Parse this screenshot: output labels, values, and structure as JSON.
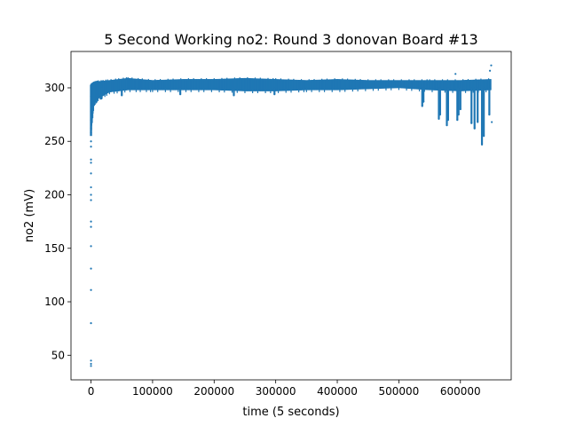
{
  "chart_data": {
    "type": "scatter",
    "title": "5 Second Working no2: Round 3 donovan Board #13",
    "xlabel": "time (5 seconds)",
    "ylabel": "no2 (mV)",
    "xlim": [
      -32500,
      682500
    ],
    "ylim": [
      27,
      334
    ],
    "x_ticks": [
      0,
      100000,
      200000,
      300000,
      400000,
      500000,
      600000
    ],
    "y_ticks": [
      50,
      100,
      150,
      200,
      250,
      300
    ],
    "grid": false,
    "legend": "none",
    "point_color": "#1f77b4",
    "startup_points": [
      {
        "x": 0,
        "y": 40
      },
      {
        "x": 0,
        "y": 42
      },
      {
        "x": 0,
        "y": 45
      },
      {
        "x": 0,
        "y": 80
      },
      {
        "x": 0,
        "y": 111
      },
      {
        "x": 0,
        "y": 131
      },
      {
        "x": 0,
        "y": 152
      },
      {
        "x": 0,
        "y": 170
      },
      {
        "x": 0,
        "y": 175
      },
      {
        "x": 0,
        "y": 195
      },
      {
        "x": 0,
        "y": 200
      },
      {
        "x": 0,
        "y": 207
      },
      {
        "x": 0,
        "y": 220
      },
      {
        "x": 0,
        "y": 230
      },
      {
        "x": 0,
        "y": 233
      },
      {
        "x": 0,
        "y": 245
      },
      {
        "x": 0,
        "y": 250
      },
      {
        "x": 0,
        "y": 258
      },
      {
        "x": 0,
        "y": 262
      },
      {
        "x": 0,
        "y": 270
      },
      {
        "x": 0,
        "y": 278
      },
      {
        "x": 0,
        "y": 285
      },
      {
        "x": 0,
        "y": 292
      },
      {
        "x": 0,
        "y": 298
      }
    ],
    "band": [
      {
        "x": 0,
        "low": 258,
        "high": 303
      },
      {
        "x": 5000,
        "low": 285,
        "high": 305
      },
      {
        "x": 12000,
        "low": 290,
        "high": 306
      },
      {
        "x": 30000,
        "low": 296,
        "high": 307
      },
      {
        "x": 60000,
        "low": 298,
        "high": 309
      },
      {
        "x": 100000,
        "low": 298,
        "high": 307
      },
      {
        "x": 150000,
        "low": 298,
        "high": 308
      },
      {
        "x": 200000,
        "low": 298,
        "high": 308
      },
      {
        "x": 250000,
        "low": 297,
        "high": 309
      },
      {
        "x": 300000,
        "low": 297,
        "high": 308
      },
      {
        "x": 350000,
        "low": 298,
        "high": 307
      },
      {
        "x": 400000,
        "low": 298,
        "high": 308
      },
      {
        "x": 450000,
        "low": 299,
        "high": 307
      },
      {
        "x": 500000,
        "low": 300,
        "high": 307
      },
      {
        "x": 550000,
        "low": 298,
        "high": 307
      },
      {
        "x": 600000,
        "low": 297,
        "high": 307
      },
      {
        "x": 650000,
        "low": 298,
        "high": 308
      }
    ],
    "dips": [
      {
        "x": 17000,
        "y": 290
      },
      {
        "x": 50000,
        "y": 293
      },
      {
        "x": 145000,
        "y": 294
      },
      {
        "x": 232000,
        "y": 293
      },
      {
        "x": 298000,
        "y": 294
      },
      {
        "x": 538000,
        "y": 283
      },
      {
        "x": 540000,
        "y": 287
      },
      {
        "x": 565000,
        "y": 271
      },
      {
        "x": 567000,
        "y": 275
      },
      {
        "x": 578000,
        "y": 265
      },
      {
        "x": 580000,
        "y": 270
      },
      {
        "x": 595000,
        "y": 270
      },
      {
        "x": 597000,
        "y": 275
      },
      {
        "x": 600000,
        "y": 280
      },
      {
        "x": 618000,
        "y": 267
      },
      {
        "x": 623000,
        "y": 262
      },
      {
        "x": 628000,
        "y": 268
      },
      {
        "x": 635000,
        "y": 247
      },
      {
        "x": 638000,
        "y": 255
      },
      {
        "x": 647000,
        "y": 275
      }
    ],
    "outliers": [
      {
        "x": 592000,
        "y": 313
      },
      {
        "x": 648000,
        "y": 316
      },
      {
        "x": 650000,
        "y": 321
      },
      {
        "x": 651000,
        "y": 268
      }
    ]
  }
}
